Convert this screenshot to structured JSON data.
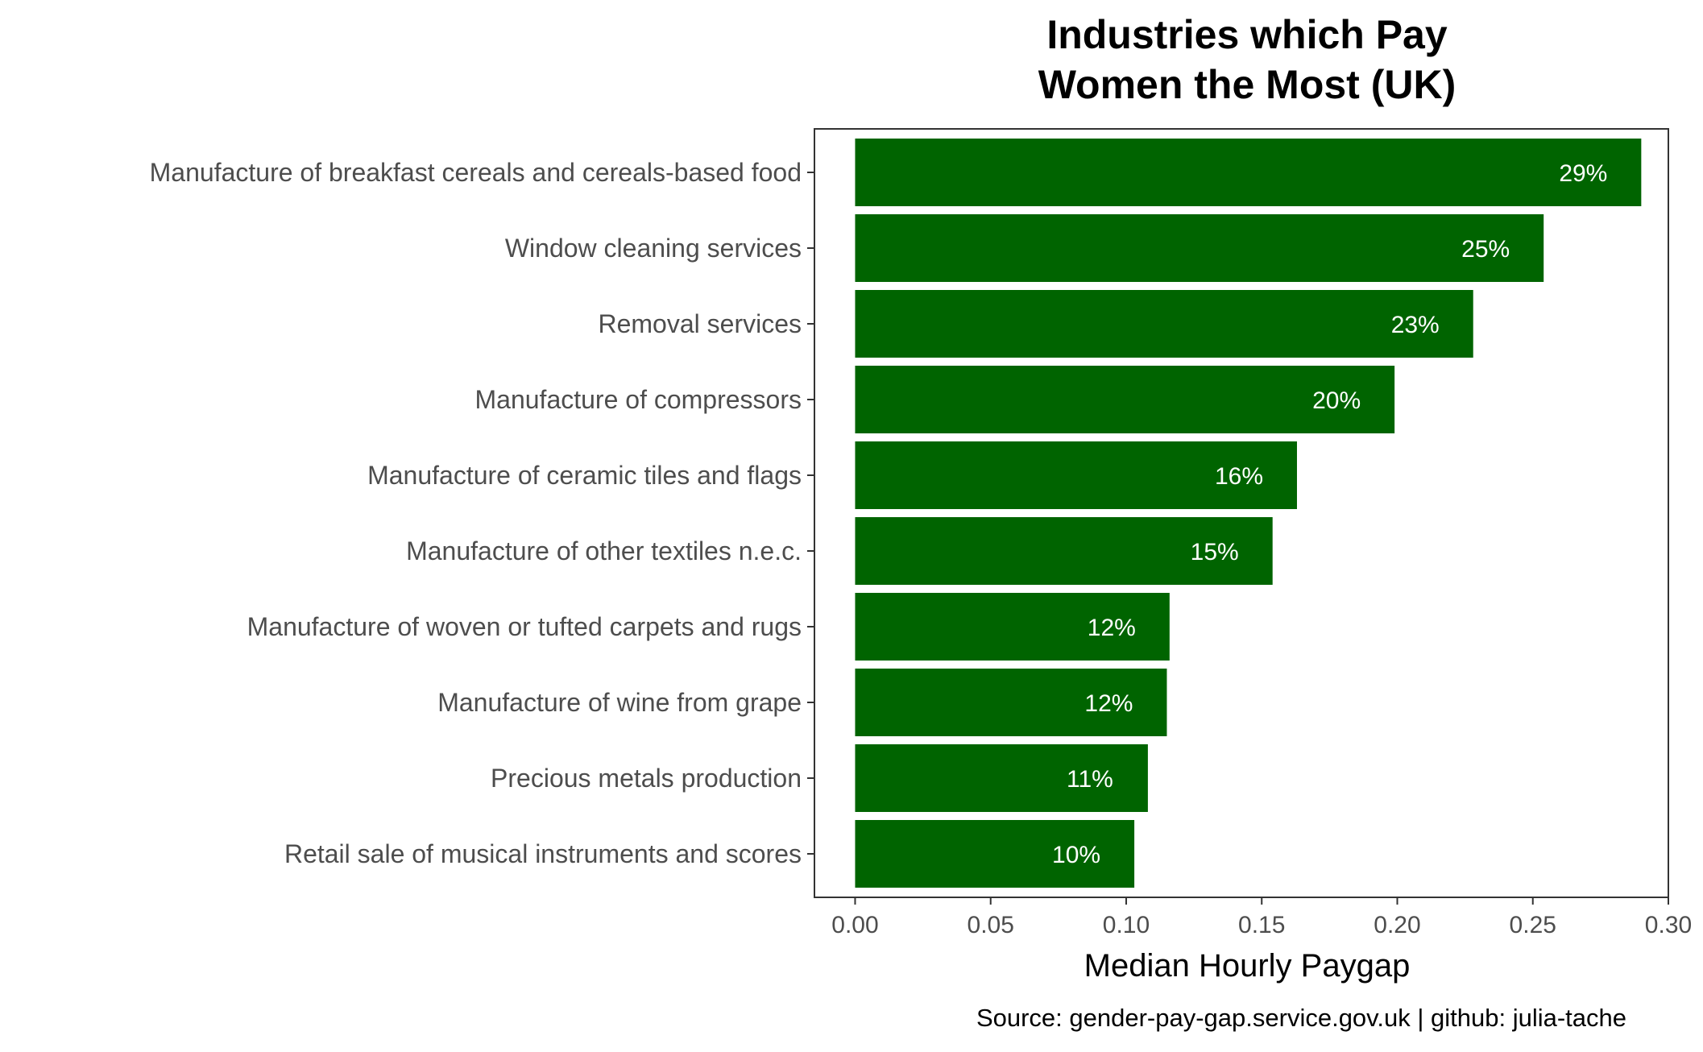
{
  "chart_data": {
    "type": "bar",
    "orientation": "horizontal",
    "title_lines": [
      "Industries which Pay",
      "Women the Most (UK)"
    ],
    "xlabel": "Median Hourly Paygap",
    "ylabel": "",
    "caption": "Source: gender-pay-gap.service.gov.uk | github: julia-tache",
    "xlim": [
      -0.015,
      0.3
    ],
    "x_ticks": [
      {
        "value": 0.0,
        "label": "0.00"
      },
      {
        "value": 0.05,
        "label": "0.05"
      },
      {
        "value": 0.1,
        "label": "0.10"
      },
      {
        "value": 0.15,
        "label": "0.15"
      },
      {
        "value": 0.2,
        "label": "0.20"
      },
      {
        "value": 0.25,
        "label": "0.25"
      },
      {
        "value": 0.3,
        "label": "0.30"
      }
    ],
    "bar_color": "#006400",
    "grid": false,
    "categories": [
      "Manufacture of breakfast cereals and cereals-based food",
      "Window cleaning services",
      "Removal services",
      "Manufacture of compressors",
      "Manufacture of ceramic tiles and flags",
      "Manufacture of other textiles n.e.c.",
      "Manufacture of woven or tufted carpets and rugs",
      "Manufacture of wine from grape",
      "Precious metals production",
      "Retail sale of musical instruments and scores"
    ],
    "values": [
      0.29,
      0.254,
      0.228,
      0.199,
      0.163,
      0.154,
      0.116,
      0.115,
      0.108,
      0.103
    ],
    "data_labels": [
      "29%",
      "25%",
      "23%",
      "20%",
      "16%",
      "15%",
      "12%",
      "12%",
      "11%",
      "10%"
    ]
  }
}
